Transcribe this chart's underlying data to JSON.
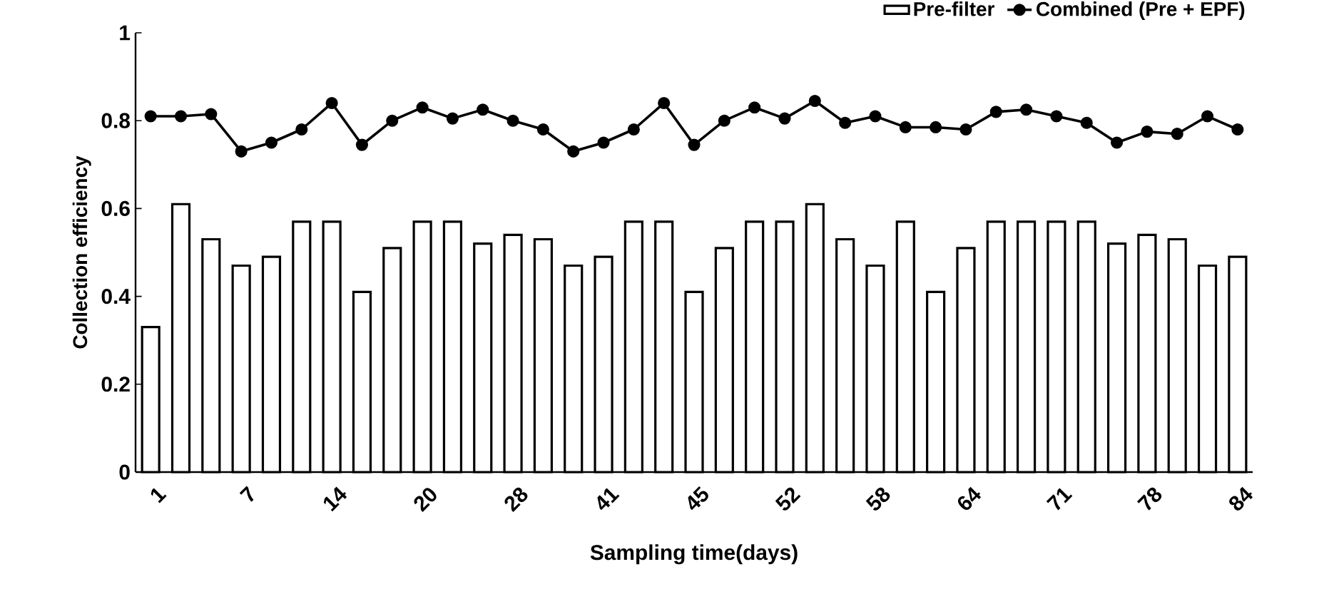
{
  "chart_data": {
    "type": "bar",
    "xlabel": "Sampling time(days)",
    "ylabel": "Collection efficiency",
    "categories": [
      "1",
      null,
      null,
      "7",
      null,
      null,
      "14",
      null,
      null,
      "20",
      null,
      null,
      "28",
      null,
      null,
      "41",
      null,
      null,
      "45",
      null,
      null,
      "52",
      null,
      null,
      "58",
      null,
      null,
      "64",
      null,
      null,
      "71",
      null,
      null,
      "78",
      null,
      null,
      "84"
    ],
    "series": [
      {
        "name": "Pre-filter",
        "color": "#ffffff",
        "values": [
          0.33,
          0.61,
          0.53,
          0.47,
          0.49,
          0.57,
          0.57,
          0.41,
          0.51,
          0.57,
          0.57,
          0.52,
          0.54,
          0.53,
          0.47,
          0.49,
          0.57,
          0.57,
          0.41,
          0.51,
          0.57,
          0.57,
          0.61,
          0.53,
          0.47,
          0.57,
          0.41,
          0.51,
          0.57,
          0.57,
          0.57,
          0.57,
          0.52,
          0.54,
          0.53,
          0.47,
          0.49
        ]
      },
      {
        "name": "Combined (Pre + EPF)",
        "type": "line",
        "color": "#000000",
        "marker": "circle",
        "values": [
          0.81,
          0.81,
          0.815,
          0.73,
          0.75,
          0.78,
          0.84,
          0.745,
          0.8,
          0.83,
          0.805,
          0.825,
          0.8,
          0.78,
          0.73,
          0.75,
          0.78,
          0.84,
          0.745,
          0.8,
          0.83,
          0.805,
          0.845,
          0.795,
          0.81,
          0.785,
          0.785,
          0.78,
          0.82,
          0.825,
          0.81,
          0.795,
          0.75,
          0.775,
          0.77,
          0.81,
          0.78
        ]
      }
    ],
    "ylim": [
      0,
      1
    ],
    "yticks": [
      0,
      0.2,
      0.4,
      0.6,
      0.8,
      1
    ],
    "grid": false,
    "legend": "top right"
  }
}
